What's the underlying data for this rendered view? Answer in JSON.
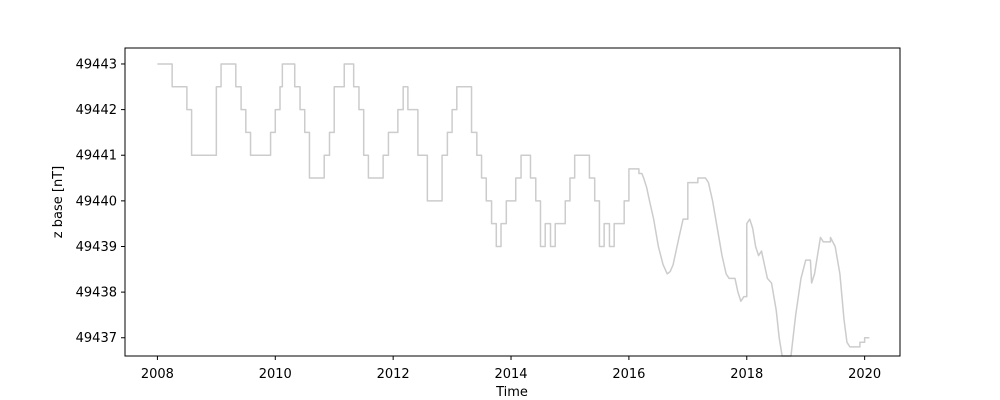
{
  "chart_data": {
    "type": "line",
    "title": "",
    "xlabel": "Time",
    "ylabel": "z base [nT]",
    "xlim": [
      2007.45,
      2020.6
    ],
    "ylim": [
      49436.6,
      49443.35
    ],
    "xticks": [
      2008,
      2010,
      2012,
      2014,
      2016,
      2018,
      2020
    ],
    "xtick_labels": [
      "2008",
      "2010",
      "2012",
      "2014",
      "2016",
      "2018",
      "2020"
    ],
    "yticks": [
      49437,
      49438,
      49439,
      49440,
      49441,
      49442,
      49443
    ],
    "ytick_labels": [
      "49437",
      "49438",
      "49439",
      "49440",
      "49441",
      "49442",
      "49443"
    ],
    "grid": false,
    "series": [
      {
        "name": "z base",
        "color": "#cccccc",
        "points": [
          [
            2008.0,
            49443.0
          ],
          [
            2008.25,
            49443.0
          ],
          [
            2008.25,
            49442.5
          ],
          [
            2008.5,
            49442.5
          ],
          [
            2008.5,
            49442.0
          ],
          [
            2008.58,
            49442.0
          ],
          [
            2008.58,
            49441.0
          ],
          [
            2009.0,
            49441.0
          ],
          [
            2009.0,
            49442.5
          ],
          [
            2009.08,
            49442.5
          ],
          [
            2009.08,
            49443.0
          ],
          [
            2009.33,
            49443.0
          ],
          [
            2009.33,
            49442.5
          ],
          [
            2009.42,
            49442.5
          ],
          [
            2009.42,
            49442.0
          ],
          [
            2009.5,
            49442.0
          ],
          [
            2009.5,
            49441.5
          ],
          [
            2009.58,
            49441.5
          ],
          [
            2009.58,
            49441.0
          ],
          [
            2009.92,
            49441.0
          ],
          [
            2009.92,
            49441.5
          ],
          [
            2010.0,
            49441.5
          ],
          [
            2010.0,
            49442.0
          ],
          [
            2010.08,
            49442.0
          ],
          [
            2010.08,
            49442.5
          ],
          [
            2010.12,
            49442.5
          ],
          [
            2010.12,
            49443.0
          ],
          [
            2010.33,
            49443.0
          ],
          [
            2010.33,
            49442.5
          ],
          [
            2010.42,
            49442.5
          ],
          [
            2010.42,
            49442.0
          ],
          [
            2010.5,
            49442.0
          ],
          [
            2010.5,
            49441.5
          ],
          [
            2010.58,
            49441.5
          ],
          [
            2010.58,
            49440.5
          ],
          [
            2010.83,
            49440.5
          ],
          [
            2010.83,
            49441.0
          ],
          [
            2010.92,
            49441.0
          ],
          [
            2010.92,
            49441.5
          ],
          [
            2011.0,
            49441.5
          ],
          [
            2011.0,
            49442.5
          ],
          [
            2011.17,
            49442.5
          ],
          [
            2011.17,
            49443.0
          ],
          [
            2011.33,
            49443.0
          ],
          [
            2011.33,
            49442.5
          ],
          [
            2011.42,
            49442.5
          ],
          [
            2011.42,
            49442.0
          ],
          [
            2011.5,
            49442.0
          ],
          [
            2011.5,
            49441.0
          ],
          [
            2011.58,
            49441.0
          ],
          [
            2011.58,
            49440.5
          ],
          [
            2011.83,
            49440.5
          ],
          [
            2011.83,
            49441.0
          ],
          [
            2011.92,
            49441.0
          ],
          [
            2011.92,
            49441.5
          ],
          [
            2012.08,
            49441.5
          ],
          [
            2012.08,
            49442.0
          ],
          [
            2012.17,
            49442.0
          ],
          [
            2012.17,
            49442.5
          ],
          [
            2012.25,
            49442.5
          ],
          [
            2012.25,
            49442.0
          ],
          [
            2012.42,
            49442.0
          ],
          [
            2012.42,
            49441.0
          ],
          [
            2012.58,
            49441.0
          ],
          [
            2012.58,
            49440.0
          ],
          [
            2012.83,
            49440.0
          ],
          [
            2012.83,
            49441.0
          ],
          [
            2012.92,
            49441.0
          ],
          [
            2012.92,
            49441.5
          ],
          [
            2013.0,
            49441.5
          ],
          [
            2013.0,
            49442.0
          ],
          [
            2013.08,
            49442.0
          ],
          [
            2013.08,
            49442.5
          ],
          [
            2013.33,
            49442.5
          ],
          [
            2013.33,
            49441.5
          ],
          [
            2013.42,
            49441.5
          ],
          [
            2013.42,
            49441.0
          ],
          [
            2013.5,
            49441.0
          ],
          [
            2013.5,
            49440.5
          ],
          [
            2013.58,
            49440.5
          ],
          [
            2013.58,
            49440.0
          ],
          [
            2013.67,
            49440.0
          ],
          [
            2013.67,
            49439.5
          ],
          [
            2013.75,
            49439.5
          ],
          [
            2013.75,
            49439.0
          ],
          [
            2013.83,
            49439.0
          ],
          [
            2013.83,
            49439.5
          ],
          [
            2013.92,
            49439.5
          ],
          [
            2013.92,
            49440.0
          ],
          [
            2014.08,
            49440.0
          ],
          [
            2014.08,
            49440.5
          ],
          [
            2014.17,
            49440.5
          ],
          [
            2014.17,
            49441.0
          ],
          [
            2014.33,
            49441.0
          ],
          [
            2014.33,
            49440.5
          ],
          [
            2014.42,
            49440.5
          ],
          [
            2014.42,
            49440.0
          ],
          [
            2014.5,
            49440.0
          ],
          [
            2014.5,
            49439.0
          ],
          [
            2014.58,
            49439.0
          ],
          [
            2014.58,
            49439.5
          ],
          [
            2014.67,
            49439.5
          ],
          [
            2014.67,
            49439.0
          ],
          [
            2014.75,
            49439.0
          ],
          [
            2014.75,
            49439.5
          ],
          [
            2014.92,
            49439.5
          ],
          [
            2014.92,
            49440.0
          ],
          [
            2015.0,
            49440.0
          ],
          [
            2015.0,
            49440.5
          ],
          [
            2015.08,
            49440.5
          ],
          [
            2015.08,
            49441.0
          ],
          [
            2015.33,
            49441.0
          ],
          [
            2015.33,
            49440.5
          ],
          [
            2015.42,
            49440.5
          ],
          [
            2015.42,
            49440.0
          ],
          [
            2015.5,
            49440.0
          ],
          [
            2015.5,
            49439.0
          ],
          [
            2015.58,
            49439.0
          ],
          [
            2015.58,
            49439.5
          ],
          [
            2015.67,
            49439.5
          ],
          [
            2015.67,
            49439.0
          ],
          [
            2015.75,
            49439.0
          ],
          [
            2015.75,
            49439.5
          ],
          [
            2015.92,
            49439.5
          ],
          [
            2015.92,
            49440.0
          ],
          [
            2016.0,
            49440.0
          ],
          [
            2016.0,
            49440.7
          ],
          [
            2016.17,
            49440.7
          ],
          [
            2016.17,
            49440.6
          ],
          [
            2016.22,
            49440.6
          ],
          [
            2016.25,
            49440.5
          ],
          [
            2016.3,
            49440.3
          ],
          [
            2016.35,
            49440.0
          ],
          [
            2016.42,
            49439.6
          ],
          [
            2016.5,
            49439.0
          ],
          [
            2016.58,
            49438.6
          ],
          [
            2016.65,
            49438.4
          ],
          [
            2016.7,
            49438.45
          ],
          [
            2016.75,
            49438.6
          ],
          [
            2016.85,
            49439.2
          ],
          [
            2016.92,
            49439.6
          ],
          [
            2017.0,
            49439.6
          ],
          [
            2017.0,
            49440.4
          ],
          [
            2017.17,
            49440.4
          ],
          [
            2017.17,
            49440.5
          ],
          [
            2017.3,
            49440.5
          ],
          [
            2017.35,
            49440.4
          ],
          [
            2017.42,
            49440.0
          ],
          [
            2017.5,
            49439.4
          ],
          [
            2017.58,
            49438.8
          ],
          [
            2017.65,
            49438.4
          ],
          [
            2017.7,
            49438.3
          ],
          [
            2017.8,
            49438.3
          ],
          [
            2017.85,
            49438.0
          ],
          [
            2017.9,
            49437.8
          ],
          [
            2017.95,
            49437.9
          ],
          [
            2018.0,
            49437.9
          ],
          [
            2018.0,
            49439.5
          ],
          [
            2018.05,
            49439.6
          ],
          [
            2018.1,
            49439.4
          ],
          [
            2018.15,
            49439.0
          ],
          [
            2018.2,
            49438.8
          ],
          [
            2018.25,
            49438.9
          ],
          [
            2018.3,
            49438.6
          ],
          [
            2018.35,
            49438.3
          ],
          [
            2018.42,
            49438.2
          ],
          [
            2018.5,
            49437.6
          ],
          [
            2018.55,
            49437.0
          ],
          [
            2018.6,
            49436.6
          ],
          [
            2018.75,
            49436.6
          ],
          [
            2018.83,
            49437.5
          ],
          [
            2018.92,
            49438.3
          ],
          [
            2019.0,
            49438.7
          ],
          [
            2019.08,
            49438.7
          ],
          [
            2019.1,
            49438.2
          ],
          [
            2019.15,
            49438.4
          ],
          [
            2019.2,
            49438.8
          ],
          [
            2019.25,
            49439.2
          ],
          [
            2019.3,
            49439.1
          ],
          [
            2019.42,
            49439.1
          ],
          [
            2019.42,
            49439.2
          ],
          [
            2019.5,
            49439.0
          ],
          [
            2019.58,
            49438.4
          ],
          [
            2019.65,
            49437.4
          ],
          [
            2019.7,
            49436.9
          ],
          [
            2019.75,
            49436.8
          ],
          [
            2019.92,
            49436.8
          ],
          [
            2019.92,
            49436.9
          ],
          [
            2020.0,
            49436.9
          ],
          [
            2020.0,
            49437.0
          ],
          [
            2020.08,
            49437.0
          ]
        ]
      }
    ]
  }
}
